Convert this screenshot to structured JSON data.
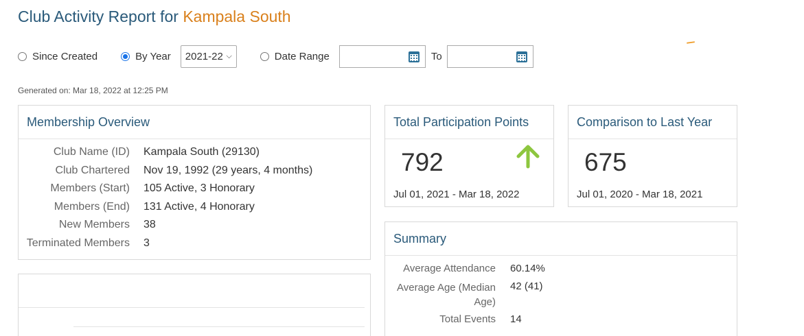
{
  "header": {
    "title_prefix": "Club Activity Report for ",
    "club_name": "Kampala South"
  },
  "filters": {
    "since_created_label": "Since Created",
    "by_year_label": "By Year",
    "year_value": "2021-22",
    "date_range_label": "Date Range",
    "to_label": "To",
    "selected": "By Year"
  },
  "generated": "Generated on: Mar 18, 2022 at 12:25 PM",
  "membership": {
    "title": "Membership Overview",
    "rows": [
      {
        "label": "Club Name (ID)",
        "value": "Kampala South (29130)"
      },
      {
        "label": "Club Chartered",
        "value": "Nov 19, 1992 (29 years, 4 months)"
      },
      {
        "label": "Members (Start)",
        "value": "105 Active, 3 Honorary"
      },
      {
        "label": "Members (End)",
        "value": "131 Active, 4 Honorary"
      },
      {
        "label": "New Members",
        "value": "38"
      },
      {
        "label": "Terminated Members",
        "value": "3"
      }
    ]
  },
  "points": {
    "title": "Total Participation Points",
    "value": "792",
    "range": "Jul 01, 2021 - Mar 18, 2022",
    "trend_icon": "arrow-up-icon",
    "trend_color": "#8dc63f"
  },
  "comparison": {
    "title": "Comparison to Last Year",
    "value": "675",
    "range": "Jul 01, 2020 - Mar 18, 2021"
  },
  "summary": {
    "title": "Summary",
    "rows": [
      {
        "label": "Average Attendance",
        "value": "60.14%"
      },
      {
        "label": "Average Age (Median",
        "label2": "Age)",
        "value": "42 (41)"
      },
      {
        "label": "Total Events",
        "value": "14"
      }
    ]
  },
  "colors": {
    "title": "#2a5a7a",
    "accent": "#d9801c",
    "radio": "#1a73e8"
  }
}
